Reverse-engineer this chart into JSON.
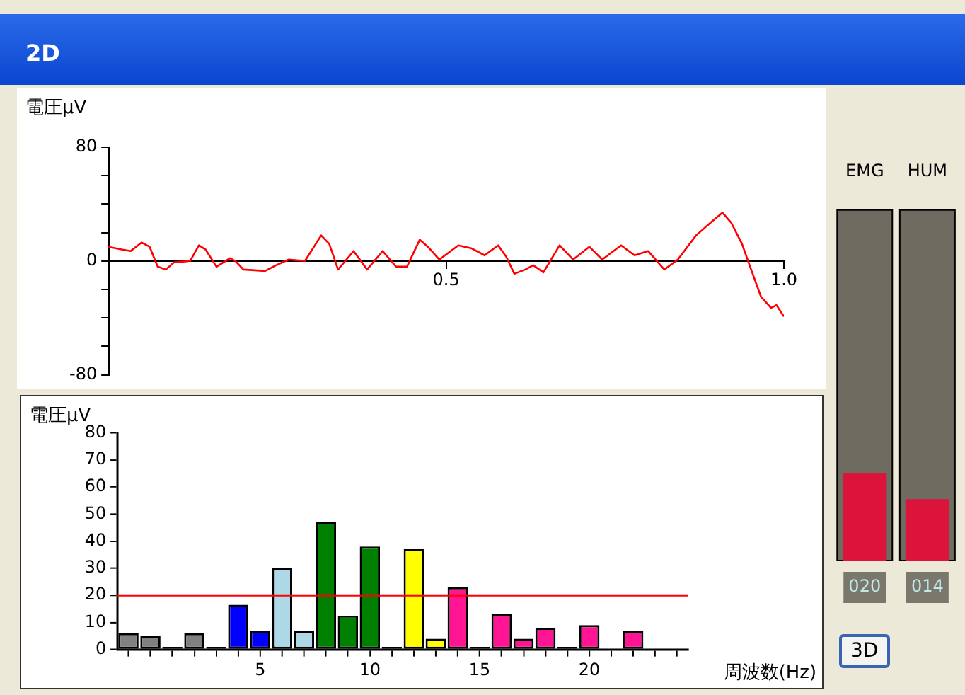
{
  "chart_data": [
    {
      "type": "line",
      "title": "2D",
      "ylabel": "電圧μV",
      "x": [
        0,
        0.021,
        0.033,
        0.049,
        0.061,
        0.073,
        0.085,
        0.097,
        0.121,
        0.134,
        0.144,
        0.16,
        0.18,
        0.188,
        0.2,
        0.232,
        0.248,
        0.267,
        0.291,
        0.315,
        0.327,
        0.34,
        0.363,
        0.383,
        0.406,
        0.426,
        0.442,
        0.461,
        0.473,
        0.49,
        0.518,
        0.537,
        0.557,
        0.577,
        0.589,
        0.601,
        0.617,
        0.629,
        0.644,
        0.668,
        0.688,
        0.712,
        0.731,
        0.759,
        0.779,
        0.799,
        0.823,
        0.843,
        0.87,
        0.894,
        0.909,
        0.922,
        0.938,
        0.95,
        0.966,
        0.981,
        0.989,
        1.0
      ],
      "series": [
        {
          "color": "#ff0000",
          "values": [
            10,
            8,
            7,
            13,
            10,
            -4,
            -6,
            -1,
            0,
            11,
            8,
            -4,
            2,
            0,
            -6,
            -7,
            -3,
            1,
            0,
            18,
            12,
            -6,
            7,
            -6,
            7,
            -4,
            -4,
            15,
            10,
            1,
            11,
            9,
            4,
            11,
            3,
            -9,
            -6,
            -3,
            -8,
            11,
            1,
            10,
            1,
            11,
            4,
            7,
            -6,
            1,
            18,
            28,
            34,
            27,
            12,
            -4,
            -25,
            -33,
            -31,
            -39
          ]
        }
      ],
      "xlim": [
        0,
        1
      ],
      "xticks": [
        0.5,
        {
          "value": 1,
          "label": "1.0"
        }
      ],
      "ylim": [
        -80,
        80
      ],
      "yticks": [
        -80,
        {
          "value": -60,
          "label": null
        },
        {
          "value": -40,
          "label": null
        },
        {
          "value": -20,
          "label": null
        },
        0,
        {
          "value": 20,
          "label": null
        },
        {
          "value": 40,
          "label": null
        },
        {
          "value": 60,
          "label": null
        },
        80
      ],
      "marker": "none"
    },
    {
      "type": "bar",
      "ylabel": "電圧μV",
      "xlabel": "周波数(Hz)",
      "categories": [
        null,
        null,
        null,
        null,
        null,
        null,
        "5",
        null,
        null,
        null,
        null,
        "10",
        null,
        null,
        null,
        null,
        "15",
        null,
        null,
        null,
        null,
        "20",
        null,
        null,
        null,
        null
      ],
      "values": [
        6,
        5,
        1,
        6,
        1,
        16.5,
        7,
        30,
        7,
        47,
        12.5,
        38,
        1,
        37,
        4,
        23,
        1,
        13,
        4,
        8,
        1,
        9,
        null,
        7,
        null,
        null
      ],
      "colors": [
        "#808080",
        "#808080",
        "#000000",
        "#808080",
        "#000000",
        "#0000ff",
        "#0000ff",
        "#add8e6",
        "#add8e6",
        "#008000",
        "#008000",
        "#008000",
        "#000000",
        "#ffff00",
        "#ffff00",
        "#ff1493",
        "#000000",
        "#ff1493",
        "#ff1493",
        "#ff1493",
        "#000000",
        "#ff1493",
        "#ff1493",
        "#ff1493",
        "#ff1493",
        "#ff1493"
      ],
      "ylim": [
        0,
        80
      ],
      "yticks": [
        0,
        10,
        20,
        30,
        40,
        50,
        60,
        70,
        80
      ],
      "ref_lines": [
        {
          "axis": "y",
          "value": 20,
          "color": "#ff0000"
        }
      ]
    },
    {
      "type": "bar",
      "categories": [
        "EMG",
        "HUM"
      ],
      "values": [
        20,
        14
      ],
      "value_labels": [
        "020",
        "014"
      ],
      "color": "#dc143c",
      "ylim": [
        0,
        80
      ],
      "annotations": [
        "3D"
      ]
    }
  ]
}
